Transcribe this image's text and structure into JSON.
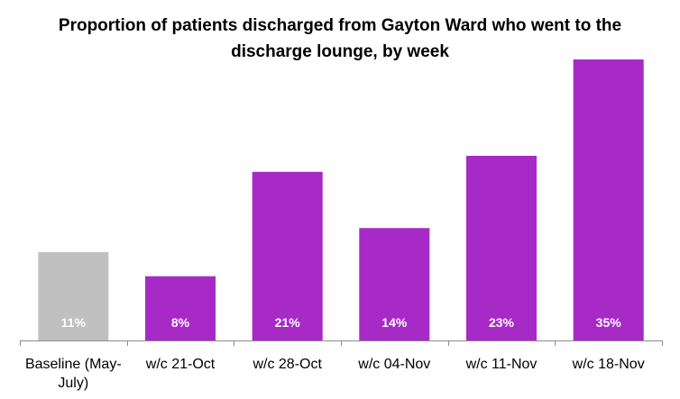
{
  "chart_data": {
    "type": "bar",
    "title": "Proportion of patients discharged from Gayton Ward who went to the discharge lounge, by week",
    "categories": [
      "Baseline (May-July)",
      "w/c 21-Oct",
      "w/c 28-Oct",
      "w/c 04-Nov",
      "w/c 11-Nov",
      "w/c 18-Nov"
    ],
    "category_lines": [
      [
        "Baseline (May-",
        "July)"
      ],
      [
        "w/c 21-Oct"
      ],
      [
        "w/c 28-Oct"
      ],
      [
        "w/c 04-Nov"
      ],
      [
        "w/c 11-Nov"
      ],
      [
        "w/c 18-Nov"
      ]
    ],
    "values": [
      11,
      8,
      21,
      14,
      23,
      35
    ],
    "data_labels": [
      "11%",
      "8%",
      "21%",
      "14%",
      "23%",
      "35%"
    ],
    "bar_colors": [
      "#c0c0c0",
      "#a72ac7",
      "#a72ac7",
      "#a72ac7",
      "#a72ac7",
      "#a72ac7"
    ],
    "ylim": [
      0,
      35
    ],
    "grid": false,
    "legend": "none",
    "xlabel": "",
    "ylabel": ""
  }
}
